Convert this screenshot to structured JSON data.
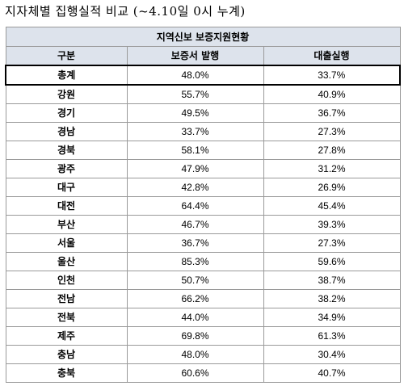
{
  "title": "지자체별 집행실적 비교 (~4.10일 0시 누계)",
  "table": {
    "caption": "지역신보 보증지원현황",
    "headers": {
      "region": "구분",
      "guarantee": "보증서 발행",
      "loan": "대출실행"
    },
    "rows": [
      {
        "region": "총계",
        "guarantee": "48.0%",
        "loan": "33.7%"
      },
      {
        "region": "강원",
        "guarantee": "55.7%",
        "loan": "40.9%"
      },
      {
        "region": "경기",
        "guarantee": "49.5%",
        "loan": "36.7%"
      },
      {
        "region": "경남",
        "guarantee": "33.7%",
        "loan": "27.3%"
      },
      {
        "region": "경북",
        "guarantee": "58.1%",
        "loan": "27.8%"
      },
      {
        "region": "광주",
        "guarantee": "47.9%",
        "loan": "31.2%"
      },
      {
        "region": "대구",
        "guarantee": "42.8%",
        "loan": "26.9%"
      },
      {
        "region": "대전",
        "guarantee": "64.4%",
        "loan": "45.4%"
      },
      {
        "region": "부산",
        "guarantee": "46.7%",
        "loan": "39.3%"
      },
      {
        "region": "서울",
        "guarantee": "36.7%",
        "loan": "27.3%"
      },
      {
        "region": "울산",
        "guarantee": "85.3%",
        "loan": "59.6%"
      },
      {
        "region": "인천",
        "guarantee": "50.7%",
        "loan": "38.7%"
      },
      {
        "region": "전남",
        "guarantee": "66.2%",
        "loan": "38.2%"
      },
      {
        "region": "전북",
        "guarantee": "44.0%",
        "loan": "34.9%"
      },
      {
        "region": "제주",
        "guarantee": "69.8%",
        "loan": "61.3%"
      },
      {
        "region": "충남",
        "guarantee": "48.0%",
        "loan": "30.4%"
      },
      {
        "region": "충북",
        "guarantee": "60.6%",
        "loan": "40.7%"
      }
    ]
  }
}
